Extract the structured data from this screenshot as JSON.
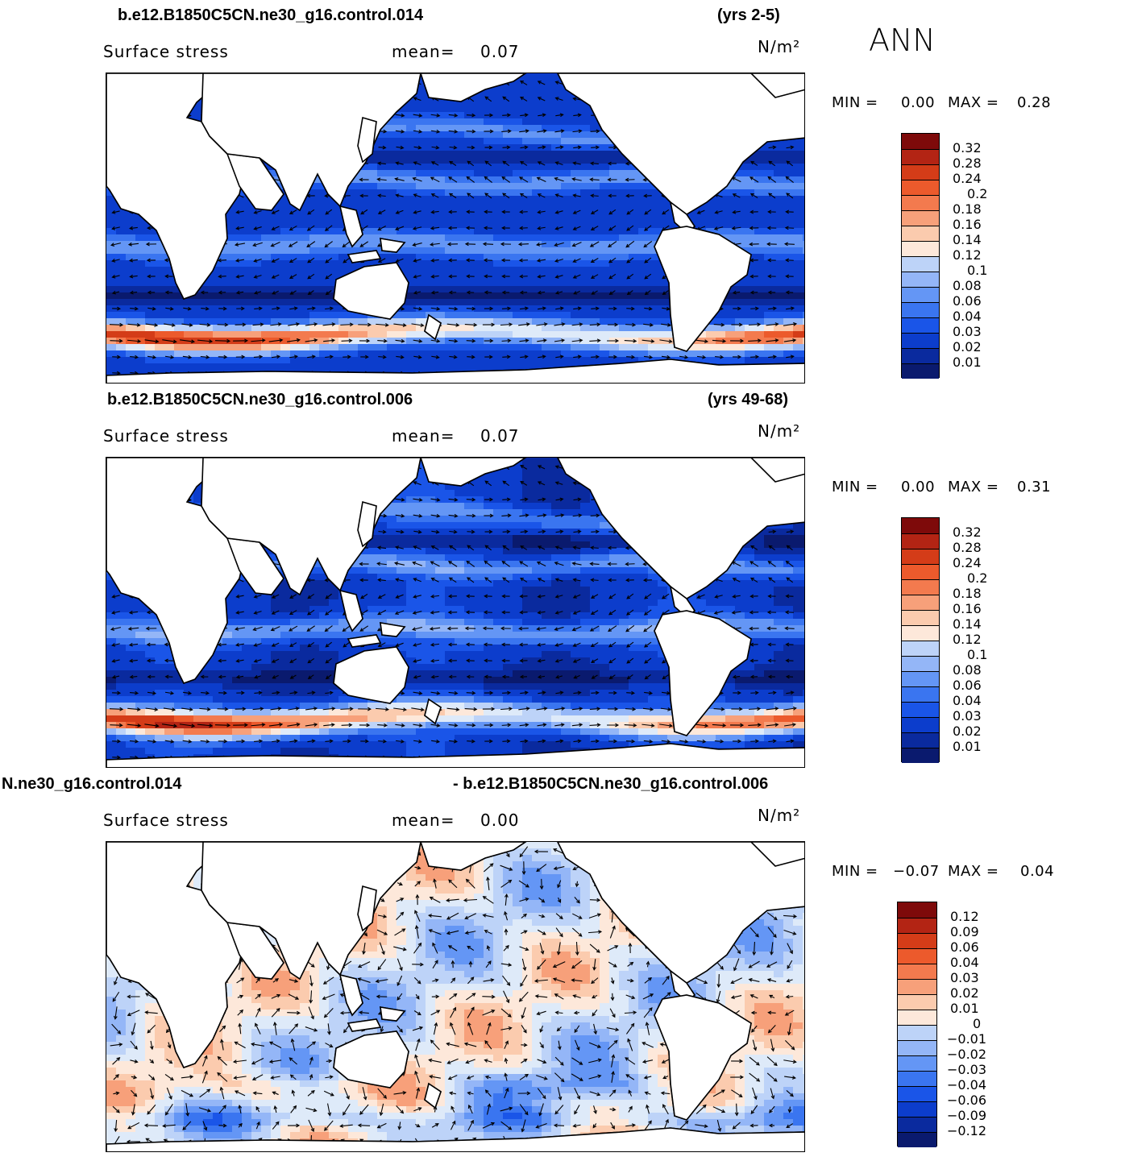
{
  "season": "ANN",
  "colors": {
    "abs_palette": [
      "#0a1a6e",
      "#0a2a9e",
      "#0c3dcc",
      "#1a55e8",
      "#3a75f0",
      "#6496f5",
      "#94b6f7",
      "#bdd3f8",
      "#deeaf9",
      "#fde8da",
      "#fbcbae",
      "#f7a07a",
      "#f37a4e",
      "#ec5a2c",
      "#d43c18",
      "#b32414",
      "#7e0a0a"
    ],
    "diff_palette": [
      "#0a1a6e",
      "#0a2a9e",
      "#0c3dcc",
      "#1a55e8",
      "#3a75f0",
      "#6496f5",
      "#94b6f7",
      "#bdd3f8",
      "#deeaf9",
      "#fde8da",
      "#fbcbae",
      "#f7a07a",
      "#f37a4e",
      "#ec5a2c",
      "#d43c18",
      "#b32414",
      "#7e0a0a"
    ],
    "land": "#ffffff"
  },
  "panels": [
    {
      "case_title": "b.e12.B1850C5CN.ne30_g16.control.014",
      "years": "(yrs 2-5)",
      "variable": "Surface stress",
      "mean_label": "mean=",
      "mean_value": "0.07",
      "units": "N/m²",
      "min_label": "MIN =",
      "min_value": "0.00",
      "max_label": "MAX =",
      "max_value": "0.28",
      "colorbar_labels": [
        "0.32",
        "0.28",
        "0.24",
        "0.2",
        "0.18",
        "0.16",
        "0.14",
        "0.12",
        "0.1",
        "0.08",
        "0.06",
        "0.04",
        "0.03",
        "0.02",
        "0.01"
      ]
    },
    {
      "case_title": "b.e12.B1850C5CN.ne30_g16.control.006",
      "years": "(yrs 49-68)",
      "variable": "Surface stress",
      "mean_label": "mean=",
      "mean_value": "0.07",
      "units": "N/m²",
      "min_label": "MIN =",
      "min_value": "0.00",
      "max_label": "MAX =",
      "max_value": "0.31",
      "colorbar_labels": [
        "0.32",
        "0.28",
        "0.24",
        "0.2",
        "0.18",
        "0.16",
        "0.14",
        "0.12",
        "0.1",
        "0.08",
        "0.06",
        "0.04",
        "0.03",
        "0.02",
        "0.01"
      ]
    },
    {
      "case_title": "N.ne30_g16.control.014",
      "years": "- b.e12.B1850C5CN.ne30_g16.control.006",
      "variable": "Surface stress",
      "mean_label": "mean=",
      "mean_value": "0.00",
      "units": "N/m²",
      "min_label": "MIN =",
      "min_value": "−0.07",
      "max_label": "MAX =",
      "max_value": "0.04",
      "colorbar_labels": [
        "0.12",
        "0.09",
        "0.06",
        "0.04",
        "0.03",
        "0.02",
        "0.01",
        "0",
        "−0.01",
        "−0.02",
        "−0.03",
        "−0.04",
        "−0.06",
        "−0.09",
        "−0.12"
      ]
    }
  ]
}
